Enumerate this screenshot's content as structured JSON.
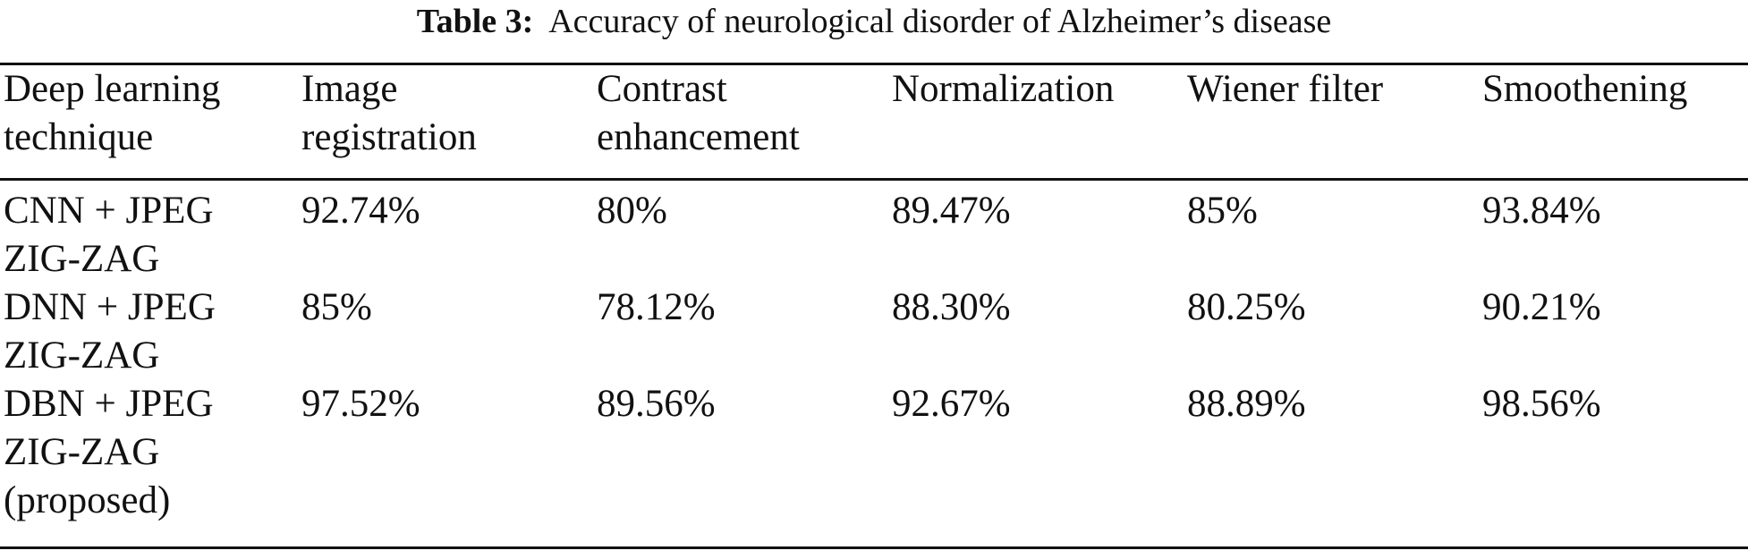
{
  "caption": {
    "label": "Table 3:",
    "text": "Accuracy of neurological disorder of Alzheimer’s disease"
  },
  "table": {
    "headers": [
      "Deep learning\ntechnique",
      "Image\nregistration",
      "Contrast\nenhancement",
      "Normalization",
      "Wiener filter",
      "Smoothening"
    ],
    "rows": [
      [
        "CNN + JPEG\nZIG-ZAG",
        "92.74%",
        "80%",
        "89.47%",
        "85%",
        "93.84%"
      ],
      [
        "DNN + JPEG\nZIG-ZAG",
        "85%",
        "78.12%",
        "88.30%",
        "80.25%",
        "90.21%"
      ],
      [
        "DBN + JPEG\nZIG-ZAG\n(proposed)",
        "97.52%",
        "89.56%",
        "92.67%",
        "88.89%",
        "98.56%"
      ]
    ]
  }
}
